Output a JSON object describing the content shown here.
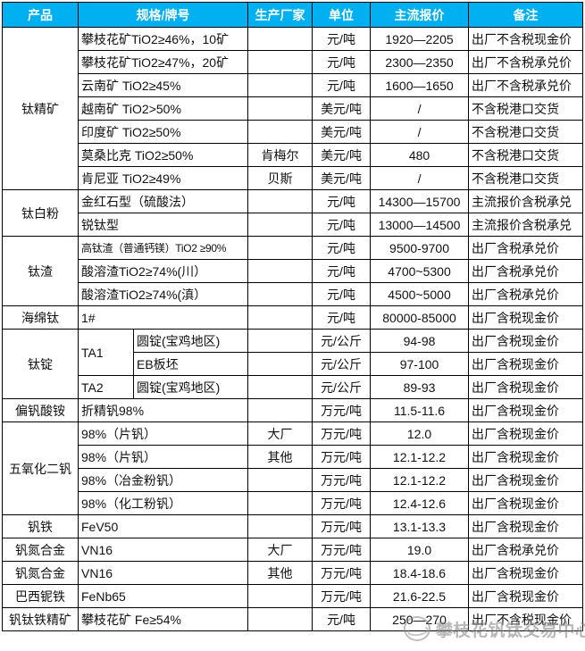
{
  "accent": {
    "header_bg": "#00B0F0",
    "header_text": "#FFFFFF",
    "border": "#000000",
    "watermark_gray": "#7D7D7D"
  },
  "table": {
    "columns": [
      "产品",
      "规格/牌号",
      "生产厂家",
      "单位",
      "主流报价",
      "备注"
    ],
    "rows": [
      {
        "product": "钛精矿",
        "product_rowspan": 7,
        "spec": "攀枝花矿TiO2≥46%，10矿",
        "maker": "",
        "unit": "元/吨",
        "price": "1920—2205",
        "note": "出厂不含税现金价"
      },
      {
        "spec": "攀枝花矿TiO2≥47%，20矿",
        "maker": "",
        "unit": "元/吨",
        "price": "2300—2350",
        "note": "出厂不含税承兑价"
      },
      {
        "spec": "云南矿 TiO2≥45%",
        "maker": "",
        "unit": "元/吨",
        "price": "1600—1650",
        "note": "出厂不含税承兑价"
      },
      {
        "spec": "越南矿 TiO2>50%",
        "maker": "",
        "unit": "美元/吨",
        "price": "/",
        "note": "不含税港口交货"
      },
      {
        "spec": "印度矿 TiO2≥50%",
        "maker": "",
        "unit": "美元/吨",
        "price": "/",
        "note": "不含税港口交货"
      },
      {
        "spec": "莫桑比克 TiO2≥50%",
        "maker": "肯梅尔",
        "unit": "美元/吨",
        "price": "480",
        "note": "不含税港口交货"
      },
      {
        "spec": "肯尼亚 TiO2≥49%",
        "maker": "贝斯",
        "unit": "美元/吨",
        "price": "/",
        "note": "不含税港口交货"
      },
      {
        "product": "钛白粉",
        "product_rowspan": 2,
        "spec": "金红石型（硫酸法）",
        "maker": "",
        "unit": "元/吨",
        "price": "14300—15700",
        "note": "主流报价含税承兑"
      },
      {
        "spec": "锐钛型",
        "maker": "",
        "unit": "元/吨",
        "price": "13000—14500",
        "note": "主流报价含税承兑"
      },
      {
        "product": "钛渣",
        "product_rowspan": 3,
        "spec": "高钛渣（普通钙镁）TiO2 ≥90%",
        "maker": "",
        "unit": "元/吨",
        "price": "9500-9700",
        "note": "出厂含税承兑价"
      },
      {
        "spec": "酸溶渣TiO2≥74%(川）",
        "maker": "",
        "unit": "元/吨",
        "price": "4700~5300",
        "note": "出厂含税承兑价"
      },
      {
        "spec": "酸溶渣TiO2≥74%(滇）",
        "maker": "",
        "unit": "元/吨",
        "price": "4500~5000",
        "note": "出厂含税承兑价"
      },
      {
        "product": "海绵钛",
        "product_rowspan": 1,
        "spec": "1#",
        "maker": "",
        "unit": "元/吨",
        "price": "80000-85000",
        "note": "出厂含税现金价"
      },
      {
        "product": "钛锭",
        "product_rowspan": 3,
        "spec": "TA1",
        "spec_rowspan": 2,
        "spec2": "圆锭(宝鸡地区)",
        "maker": "",
        "unit": "元/公斤",
        "price": "94-98",
        "note": "出厂含税现金价"
      },
      {
        "spec2": "EB板坯",
        "maker": "",
        "unit": "元/公斤",
        "price": "97-100",
        "note": "出厂含税现金价"
      },
      {
        "spec": "TA2",
        "spec2": "圆锭(宝鸡地区)",
        "maker": "",
        "unit": "元/公斤",
        "price": "89-93",
        "note": "出厂含税现金价"
      },
      {
        "product": "偏钒酸铵",
        "product_rowspan": 1,
        "spec": "折精钒98%",
        "maker": "",
        "unit": "万元/吨",
        "price": "11.5-11.6",
        "note": "出厂含税现金价"
      },
      {
        "product": "五氧化二钒",
        "product_rowspan": 4,
        "spec": "98%（片钒）",
        "maker": "大厂",
        "unit": "万元/吨",
        "price": "12.0",
        "note": "出厂含税现金价"
      },
      {
        "spec": "98%（片钒）",
        "maker": "其他",
        "unit": "万元/吨",
        "price": "12.1-12.2",
        "note": "出厂含税现金价"
      },
      {
        "spec": "98%（冶金粉钒）",
        "maker": "",
        "unit": "万元/吨",
        "price": "12.1-12.2",
        "note": "出厂含税现金价"
      },
      {
        "spec": "98%（化工粉钒）",
        "maker": "",
        "unit": "万元/吨",
        "price": "12.4-12.6",
        "note": "出厂含税现金价"
      },
      {
        "product": "钒铁",
        "product_rowspan": 1,
        "spec": "FeV50",
        "maker": "",
        "unit": "万元/吨",
        "price": "13.1-13.3",
        "note": "出厂含税现金价"
      },
      {
        "product": "钒氮合金",
        "product_rowspan": 1,
        "spec": "VN16",
        "maker": "大厂",
        "unit": "万元/吨",
        "price": "19.0",
        "note": "出厂含税承兑价"
      },
      {
        "product": "钒氮合金",
        "product_rowspan": 1,
        "spec": "VN16",
        "maker": "其他",
        "unit": "万元/吨",
        "price": "18.4-18.6",
        "note": "出厂含税现金价"
      },
      {
        "product": "巴西铌铁",
        "product_rowspan": 1,
        "spec": "FeNb65",
        "maker": "",
        "unit": "万元/吨",
        "price": "21.6-22.5",
        "note": "出厂含税现金价"
      },
      {
        "product": "钒钛铁精矿",
        "product_rowspan": 1,
        "spec": "攀枝花矿 Fe≥54%",
        "maker": "",
        "unit": "元/吨",
        "price": "250—270",
        "note": "出厂不含税现金价"
      }
    ]
  },
  "watermark": {
    "text": "攀枝花钒钛交易中心",
    "logo": "circle-swoosh-logo"
  }
}
